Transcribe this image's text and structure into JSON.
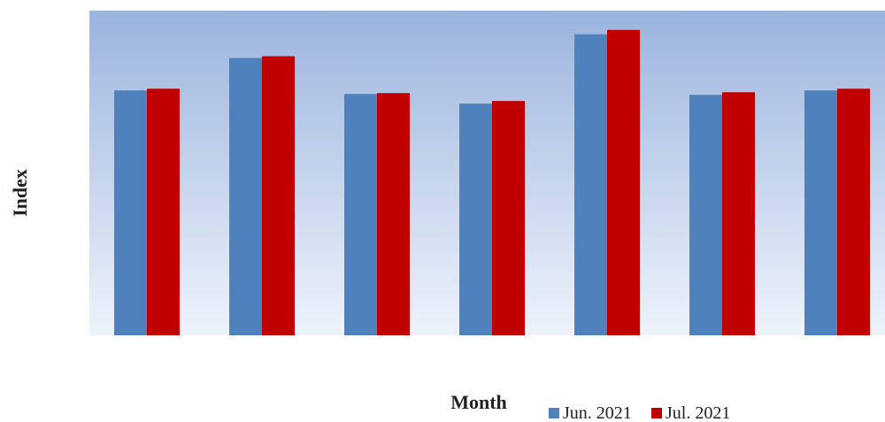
{
  "chart_data": {
    "type": "bar",
    "title": "",
    "xlabel": "Month",
    "ylabel": "Index",
    "categories": [
      "",
      "",
      "",
      "",
      "",
      "",
      ""
    ],
    "series": [
      {
        "name": "Jun. 2021",
        "color": "#4f81bd",
        "values": [
          279,
          316,
          275,
          264,
          343,
          274,
          279
        ]
      },
      {
        "name": "Jul. 2021",
        "color": "#c00000",
        "values": [
          281,
          318,
          276,
          267,
          348,
          277,
          281
        ]
      }
    ],
    "ylim": [
      0,
      370
    ],
    "grid": false,
    "legend": "bottom-right",
    "plot_background": {
      "top": "#9bb4de",
      "bottom": "#eef3fb"
    }
  }
}
